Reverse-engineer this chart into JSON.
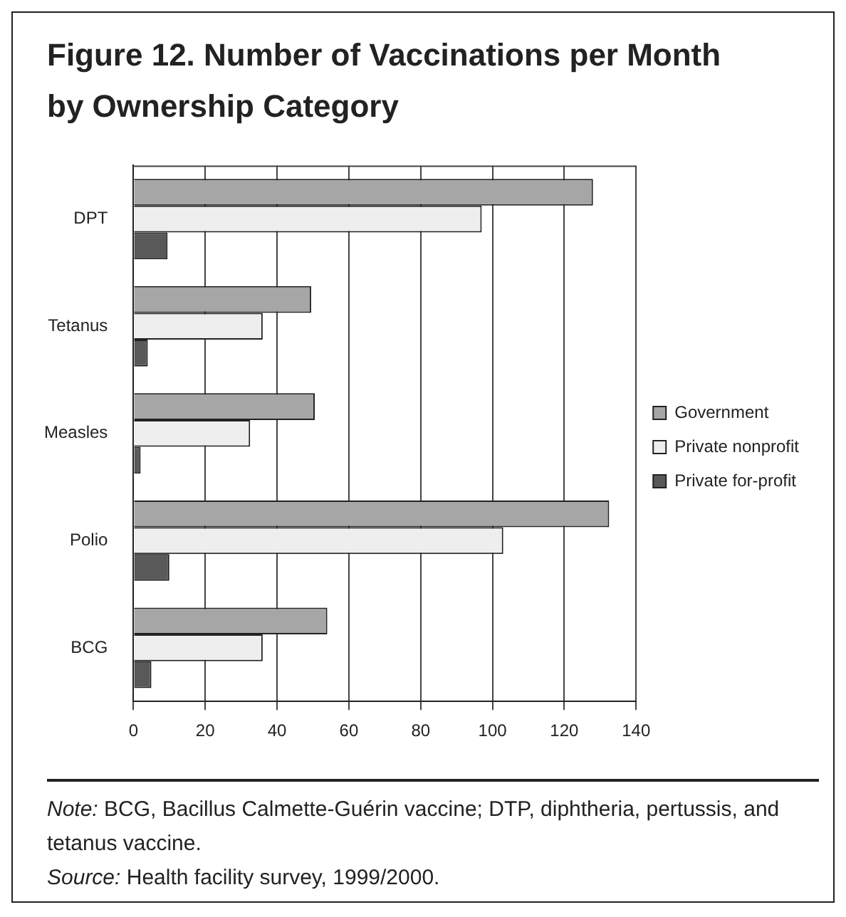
{
  "chart_data": {
    "type": "bar",
    "orientation": "horizontal",
    "title": "Figure 12.  Number of Vaccinations per Month by Ownership Category",
    "categories": [
      "DPT",
      "Tetanus",
      "Measles",
      "Polio",
      "BCG"
    ],
    "series": [
      {
        "name": "Government",
        "color": "#a6a6a6",
        "values": [
          128,
          49.5,
          50.5,
          132.5,
          54
        ]
      },
      {
        "name": "Private nonprofit",
        "color": "#eeeeee",
        "values": [
          97,
          36,
          32.5,
          103,
          36
        ]
      },
      {
        "name": "Private for-profit",
        "color": "#595959",
        "values": [
          9.5,
          4,
          2,
          10,
          5
        ]
      }
    ],
    "xlim": [
      0,
      140
    ],
    "xticks": [
      0,
      20,
      40,
      60,
      80,
      100,
      120,
      140
    ],
    "grid": "x",
    "legend": "right",
    "annotations": [
      "Note: BCG, Bacillus Calmette-Guérin vaccine; DTP, diphtheria, pertussis, and tetanus vaccine.",
      "Source: Health facility survey, 1999/2000."
    ]
  }
}
